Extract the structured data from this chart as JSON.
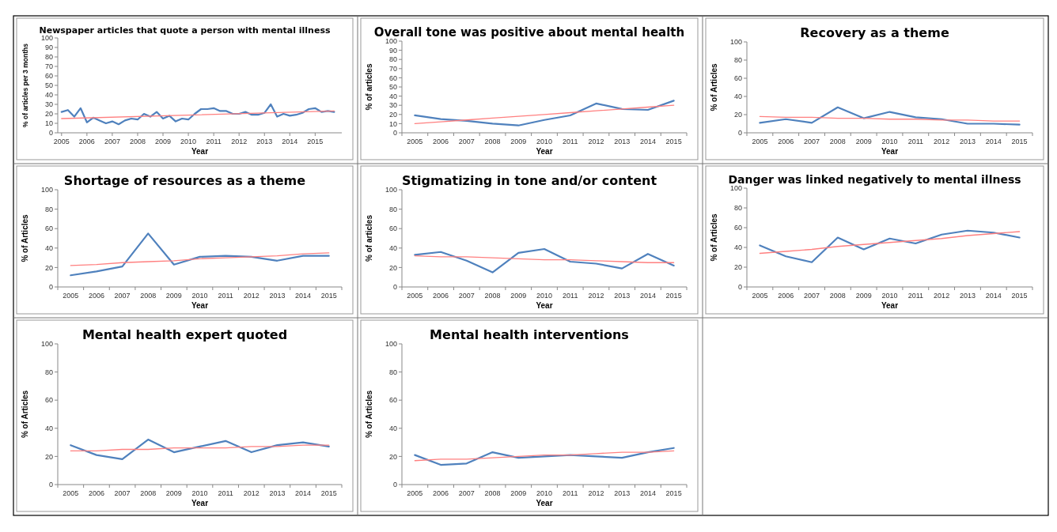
{
  "chart_data": [
    {
      "type": "line",
      "title": "Newspaper articles that quote a person with mental illness",
      "xlabel": "Year",
      "ylabel": "% of articles per 3 months",
      "x": [
        2005,
        2005.25,
        2005.5,
        2005.75,
        2006,
        2006.25,
        2006.5,
        2006.75,
        2007,
        2007.25,
        2007.5,
        2007.75,
        2008,
        2008.25,
        2008.5,
        2008.75,
        2009,
        2009.25,
        2009.5,
        2009.75,
        2010,
        2010.25,
        2010.5,
        2010.75,
        2011,
        2011.25,
        2011.5,
        2011.75,
        2012,
        2012.25,
        2012.5,
        2012.75,
        2013,
        2013.25,
        2013.5,
        2013.75,
        2014,
        2014.25,
        2014.5,
        2014.75,
        2015,
        2015.25,
        2015.5,
        2015.75
      ],
      "xlim": [
        2004.85,
        2016.05
      ],
      "xticks": [
        2005,
        2006,
        2007,
        2008,
        2009,
        2010,
        2011,
        2012,
        2013,
        2014,
        2015
      ],
      "ylim": [
        0,
        100
      ],
      "yticks": [
        0,
        10,
        20,
        30,
        40,
        50,
        60,
        70,
        80,
        90,
        100
      ],
      "series": [
        {
          "type": "line",
          "color": "#4f81bd",
          "values": [
            22,
            24,
            17,
            26,
            11,
            16,
            13,
            10,
            12,
            9,
            13,
            15,
            14,
            20,
            17,
            22,
            15,
            18,
            12,
            15,
            14,
            20,
            25,
            25,
            26,
            23,
            23,
            20,
            20,
            22,
            19,
            19,
            21,
            30,
            17,
            20,
            18,
            19,
            21,
            25,
            26,
            22,
            23,
            22
          ]
        },
        {
          "type": "line",
          "color": "#ff8080",
          "x": [
            2005,
            2015.75
          ],
          "values": [
            15,
            23
          ]
        }
      ]
    },
    {
      "type": "line",
      "title": "Overall tone was positive about mental health",
      "xlabel": "Year",
      "ylabel": "% of articles",
      "categories": [
        "2005",
        "2006",
        "2007",
        "2008",
        "2009",
        "2010",
        "2011",
        "2012",
        "2013",
        "2014",
        "2015"
      ],
      "ylim": [
        0,
        100
      ],
      "yticks": [
        0,
        10,
        20,
        30,
        40,
        50,
        60,
        70,
        80,
        90,
        100
      ],
      "series": [
        {
          "type": "line",
          "color": "#4f81bd",
          "values": [
            19,
            15,
            13,
            10,
            8,
            14,
            19,
            32,
            26,
            25,
            35
          ]
        },
        {
          "type": "line",
          "color": "#ff8080",
          "values": [
            10,
            12,
            14,
            16,
            18,
            20,
            22,
            24,
            26,
            28,
            30
          ]
        }
      ]
    },
    {
      "type": "line",
      "title": "Recovery as a theme",
      "xlabel": "Year",
      "ylabel": "% of Articles",
      "categories": [
        "2005",
        "2006",
        "2007",
        "2008",
        "2009",
        "2010",
        "2011",
        "2012",
        "2013",
        "2014",
        "2015"
      ],
      "ylim": [
        0,
        100
      ],
      "yticks": [
        0,
        20,
        40,
        60,
        80,
        100
      ],
      "series": [
        {
          "type": "line",
          "color": "#4f81bd",
          "values": [
            11,
            15,
            11,
            28,
            16,
            23,
            17,
            15,
            10,
            10,
            9
          ]
        },
        {
          "type": "line",
          "color": "#ff8080",
          "values": [
            18,
            17,
            17,
            16,
            16,
            15,
            15,
            14,
            14,
            13,
            13
          ]
        }
      ]
    },
    {
      "type": "line",
      "title": "Shortage of resources as a theme",
      "xlabel": "Year",
      "ylabel": "% of Articles",
      "categories": [
        "2005",
        "2006",
        "2007",
        "2008",
        "2009",
        "2010",
        "2011",
        "2012",
        "2013",
        "2014",
        "2015"
      ],
      "ylim": [
        0,
        100
      ],
      "yticks": [
        0,
        20,
        40,
        60,
        80,
        100
      ],
      "series": [
        {
          "type": "line",
          "color": "#4f81bd",
          "values": [
            12,
            16,
            21,
            55,
            23,
            31,
            32,
            31,
            27,
            32,
            32
          ]
        },
        {
          "type": "line",
          "color": "#ff8080",
          "values": [
            22,
            23,
            25,
            26,
            27,
            29,
            30,
            31,
            32,
            34,
            35
          ]
        }
      ]
    },
    {
      "type": "line",
      "title": "Stigmatizing in tone and/or content",
      "xlabel": "Year",
      "ylabel": "% of articles",
      "categories": [
        "2005",
        "2006",
        "2007",
        "2008",
        "2009",
        "2010",
        "2011",
        "2012",
        "2013",
        "2014",
        "2015"
      ],
      "ylim": [
        0,
        100
      ],
      "yticks": [
        0,
        20,
        40,
        60,
        80,
        100
      ],
      "series": [
        {
          "type": "line",
          "color": "#4f81bd",
          "values": [
            33,
            36,
            27,
            15,
            35,
            39,
            26,
            24,
            19,
            34,
            22
          ]
        },
        {
          "type": "line",
          "color": "#ff8080",
          "values": [
            32,
            31,
            31,
            30,
            29,
            28,
            28,
            27,
            26,
            25,
            25
          ]
        }
      ]
    },
    {
      "type": "line",
      "title": "Danger was linked negatively to mental illness",
      "xlabel": "Year",
      "ylabel": "% of Articles",
      "categories": [
        "2005",
        "2006",
        "2007",
        "2008",
        "2009",
        "2010",
        "2011",
        "2012",
        "2013",
        "2014",
        "2015"
      ],
      "ylim": [
        0,
        100
      ],
      "yticks": [
        0,
        20,
        40,
        60,
        80,
        100
      ],
      "series": [
        {
          "type": "line",
          "color": "#4f81bd",
          "values": [
            42,
            31,
            25,
            50,
            38,
            49,
            44,
            53,
            57,
            55,
            50
          ]
        },
        {
          "type": "line",
          "color": "#ff8080",
          "values": [
            34,
            36,
            38,
            41,
            43,
            45,
            47,
            49,
            52,
            54,
            56
          ]
        }
      ]
    },
    {
      "type": "line",
      "title": "Mental health expert quoted",
      "xlabel": "Year",
      "ylabel": "% of Articles",
      "categories": [
        "2005",
        "2006",
        "2007",
        "2008",
        "2009",
        "2010",
        "2011",
        "2012",
        "2013",
        "2014",
        "2015"
      ],
      "ylim": [
        0,
        100
      ],
      "yticks": [
        0,
        20,
        40,
        60,
        80,
        100
      ],
      "series": [
        {
          "type": "line",
          "color": "#4f81bd",
          "values": [
            28,
            21,
            18,
            32,
            23,
            27,
            31,
            23,
            28,
            30,
            27
          ]
        },
        {
          "type": "line",
          "color": "#ff8080",
          "values": [
            24,
            24,
            25,
            25,
            26,
            26,
            26,
            27,
            27,
            28,
            28
          ]
        }
      ]
    },
    {
      "type": "line",
      "title": "Mental health interventions",
      "xlabel": "Year",
      "ylabel": "% of Articles",
      "categories": [
        "2005",
        "2006",
        "2007",
        "2008",
        "2009",
        "2010",
        "2011",
        "2012",
        "2013",
        "2014",
        "2015"
      ],
      "ylim": [
        0,
        100
      ],
      "yticks": [
        0,
        20,
        40,
        60,
        80,
        100
      ],
      "series": [
        {
          "type": "line",
          "color": "#4f81bd",
          "values": [
            21,
            14,
            15,
            23,
            19,
            20,
            21,
            20,
            19,
            23,
            26
          ]
        },
        {
          "type": "line",
          "color": "#ff8080",
          "values": [
            17,
            18,
            18,
            19,
            20,
            21,
            21,
            22,
            23,
            23,
            24
          ]
        }
      ]
    }
  ]
}
